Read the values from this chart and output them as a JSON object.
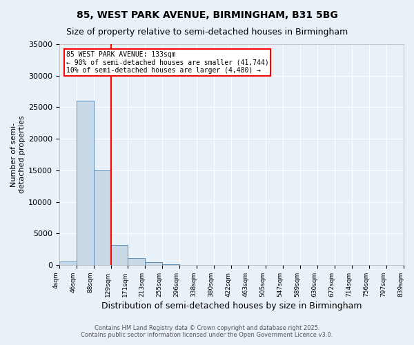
{
  "title1": "85, WEST PARK AVENUE, BIRMINGHAM, B31 5BG",
  "title2": "Size of property relative to semi-detached houses in Birmingham",
  "xlabel": "Distribution of semi-detached houses by size in Birmingham",
  "ylabel": "Number of semi-\ndetached properties",
  "bin_labels": [
    "4sqm",
    "46sqm",
    "88sqm",
    "129sqm",
    "171sqm",
    "213sqm",
    "255sqm",
    "296sqm",
    "338sqm",
    "380sqm",
    "422sqm",
    "463sqm",
    "505sqm",
    "547sqm",
    "589sqm",
    "630sqm",
    "672sqm",
    "714sqm",
    "756sqm",
    "797sqm",
    "839sqm"
  ],
  "bar_values": [
    500,
    26000,
    15000,
    3200,
    1100,
    400,
    150,
    50,
    10,
    5,
    2,
    1,
    0,
    0,
    0,
    0,
    0,
    0,
    0,
    0
  ],
  "bar_color": "#c8d9e8",
  "bar_edge_color": "#5b8db8",
  "bg_color": "#e8f0f8",
  "grid_color": "#ffffff",
  "property_line": "85 WEST PARK AVENUE: 133sqm",
  "annotation_line2": "← 90% of semi-detached houses are smaller (41,744)",
  "annotation_line3": "10% of semi-detached houses are larger (4,480) →",
  "ylim": [
    0,
    35000
  ],
  "yticks": [
    0,
    5000,
    10000,
    15000,
    20000,
    25000,
    30000,
    35000
  ],
  "footnote1": "Contains HM Land Registry data © Crown copyright and database right 2025.",
  "footnote2": "Contains public sector information licensed under the Open Government Licence v3.0."
}
